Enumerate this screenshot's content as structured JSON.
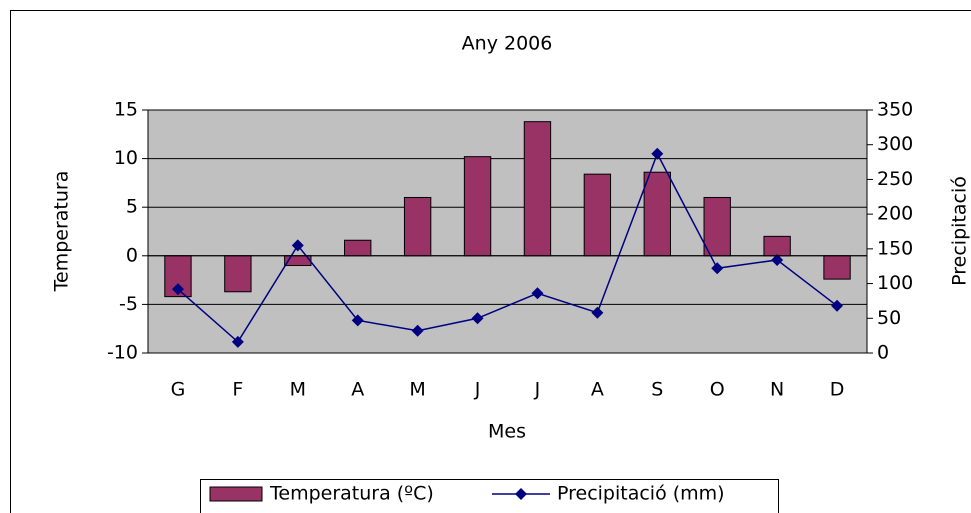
{
  "chart_data": {
    "type": "bar_line",
    "title": "Any 2006",
    "x_label": "Mes",
    "y_label": "Temperatura",
    "y2_label": "Precipitació",
    "categories": [
      "G",
      "F",
      "M",
      "A",
      "M",
      "J",
      "J",
      "A",
      "S",
      "O",
      "N",
      "D"
    ],
    "series": [
      {
        "name": "Temperatura (ºC)",
        "color": "#993366",
        "type": "bar",
        "values": [
          -4.2,
          -3.7,
          -1,
          1.6,
          6,
          10.2,
          13.8,
          8.4,
          8.6,
          6,
          2,
          -2.4
        ]
      },
      {
        "name": "Precipitació (mm)",
        "color": "#000080",
        "type": "line",
        "axis": "y2",
        "values": [
          92,
          16,
          155,
          47,
          32,
          50,
          86,
          58,
          287,
          122,
          134,
          68
        ]
      }
    ],
    "ylim": [
      -10,
      15
    ],
    "yticks": [
      -10,
      -5,
      0,
      5,
      10,
      15
    ],
    "y2lim": [
      0,
      350
    ],
    "y2ticks": [
      0,
      50,
      100,
      150,
      200,
      250,
      300,
      350
    ],
    "grid": true,
    "legend": "bottom"
  }
}
